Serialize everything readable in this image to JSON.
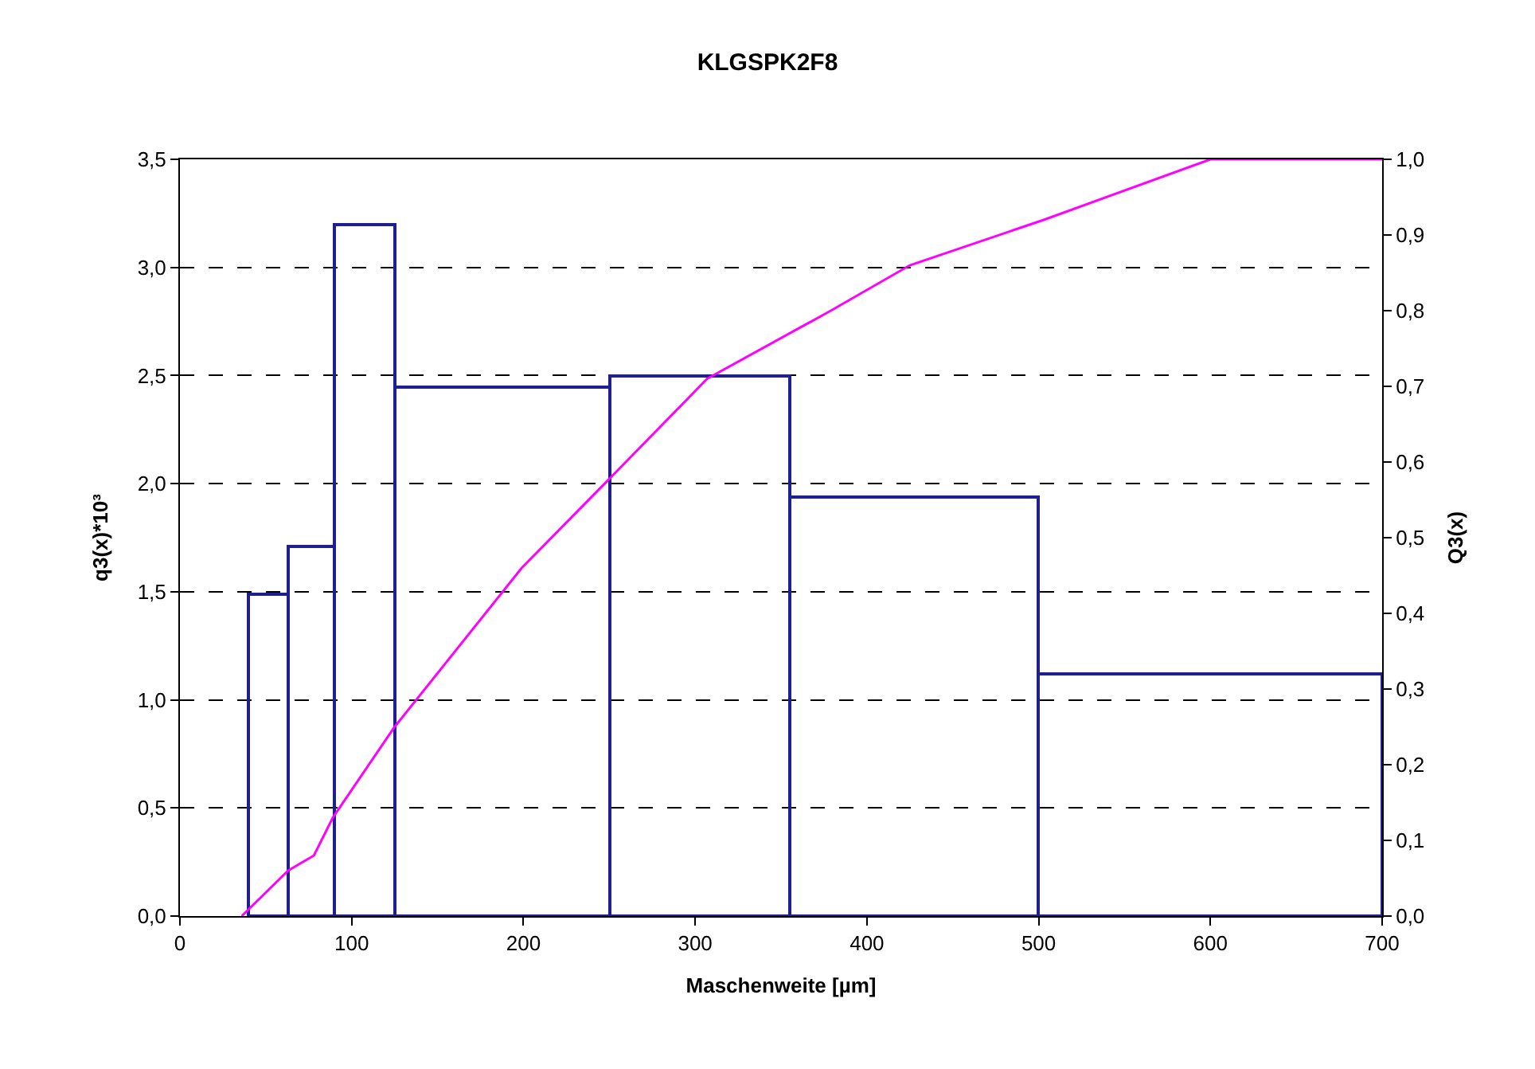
{
  "chart_data": {
    "type": "histogram",
    "title": "KLGSPK2F8",
    "xlabel": "Maschenweite [µm]",
    "ylabel": "q3(x)*10³",
    "y2label": "Q3(x)",
    "bins": [
      40,
      63,
      90,
      125,
      250,
      355,
      500,
      700
    ],
    "values": [
      1.49,
      1.71,
      3.2,
      2.45,
      2.5,
      1.94,
      1.12
    ],
    "color": "#1f1f8f",
    "series": [
      {
        "type": "line",
        "axis": "y2",
        "color": "#ff00ff",
        "x": [
          36,
          63,
          78,
          89,
          125,
          199,
          251,
          307,
          379,
          425,
          503,
          600,
          700
        ],
        "values": [
          0,
          0.06,
          0.08,
          0.13,
          0.25,
          0.46,
          0.58,
          0.71,
          0.8,
          0.86,
          0.92,
          1.0,
          1.0
        ]
      }
    ],
    "xlim": [
      0,
      700
    ],
    "xticks": [
      0,
      100,
      200,
      300,
      400,
      500,
      600,
      700
    ],
    "ylim": [
      0,
      3.5
    ],
    "yticks": [
      {
        "value": 0,
        "label": "0,0"
      },
      {
        "value": 0.5,
        "label": "0,5"
      },
      {
        "value": 1,
        "label": "1,0"
      },
      {
        "value": 1.5,
        "label": "1,5"
      },
      {
        "value": 2,
        "label": "2,0"
      },
      {
        "value": 2.5,
        "label": "2,5"
      },
      {
        "value": 3,
        "label": "3,0"
      },
      {
        "value": 3.5,
        "label": "3,5"
      }
    ],
    "y2lim": [
      0,
      1
    ],
    "y2ticks": [
      {
        "value": 0,
        "label": "0,0"
      },
      {
        "value": 0.1,
        "label": "0,1"
      },
      {
        "value": 0.2,
        "label": "0,2"
      },
      {
        "value": 0.3,
        "label": "0,3"
      },
      {
        "value": 0.4,
        "label": "0,4"
      },
      {
        "value": 0.5,
        "label": "0,5"
      },
      {
        "value": 0.6,
        "label": "0,6"
      },
      {
        "value": 0.7,
        "label": "0,7"
      },
      {
        "value": 0.8,
        "label": "0,8"
      },
      {
        "value": 0.9,
        "label": "0,9"
      },
      {
        "value": 1,
        "label": "1,0"
      }
    ],
    "grid": "y",
    "line_style": "solid"
  }
}
